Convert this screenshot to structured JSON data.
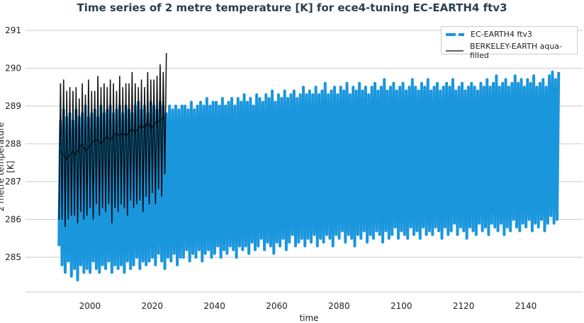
{
  "chart_data": {
    "type": "line",
    "title": "Time series of 2 metre temperature [K] for ece4-tuning EC-EARTH4 ftv3",
    "xlabel": "time",
    "ylabel": "2 metre temperature [K]",
    "xlim": [
      1990,
      2150
    ],
    "ylim": [
      284.2,
      291.2
    ],
    "xticks": [
      2000,
      2020,
      2040,
      2060,
      2080,
      2100,
      2120,
      2140
    ],
    "yticks": [
      285,
      286,
      287,
      288,
      289,
      290,
      291
    ],
    "grid": true,
    "legend_position": "top-right",
    "series": [
      {
        "name": "EC-EARTH4 ftv3",
        "color": "#1a96dd",
        "style": "dashed-thick",
        "start_year": 1990,
        "annual_max": [
          288.6,
          288.9,
          288.7,
          288.8,
          288.6,
          288.9,
          288.7,
          288.8,
          289.0,
          288.7,
          288.8,
          288.9,
          288.7,
          289.0,
          288.8,
          288.9,
          289.0,
          288.8,
          288.9,
          289.0,
          288.8,
          289.0,
          288.9,
          288.8,
          289.0,
          289.1,
          288.9,
          289.0,
          288.8,
          289.1,
          289.0,
          288.9,
          289.1,
          289.0,
          288.8,
          289.0,
          288.9,
          289.0,
          288.9,
          289.0,
          289.0,
          288.9,
          289.1,
          288.9,
          289.0,
          289.1,
          289.0,
          289.2,
          289.0,
          289.1,
          289.1,
          289.0,
          289.2,
          289.0,
          289.1,
          289.2,
          289.0,
          289.2,
          289.1,
          289.3,
          289.1,
          289.2,
          289.0,
          289.3,
          289.2,
          289.1,
          289.3,
          289.2,
          289.4,
          289.1,
          289.3,
          289.2,
          289.4,
          289.2,
          289.3,
          289.4,
          289.2,
          289.3,
          289.5,
          289.3,
          289.4,
          289.3,
          289.5,
          289.3,
          289.4,
          289.6,
          289.3,
          289.4,
          289.5,
          289.3,
          289.5,
          289.4,
          289.6,
          289.3,
          289.5,
          289.4,
          289.6,
          289.4,
          289.5,
          289.3,
          289.5,
          289.6,
          289.4,
          289.5,
          289.7,
          289.4,
          289.5,
          289.6,
          289.4,
          289.5,
          289.6,
          289.4,
          289.5,
          289.7,
          289.5,
          289.4,
          289.6,
          289.5,
          289.7,
          289.4,
          289.5,
          289.6,
          289.4,
          289.5,
          289.6,
          289.5,
          289.7,
          289.4,
          289.5,
          289.6,
          289.4,
          289.5,
          289.6,
          289.5,
          289.4,
          289.6,
          289.5,
          289.7,
          289.5,
          289.6,
          289.8,
          289.5,
          289.6,
          289.7,
          289.5,
          289.6,
          289.8,
          289.6,
          289.7,
          289.5,
          289.7,
          289.6,
          289.8,
          289.5,
          289.6,
          289.7,
          289.5,
          289.8,
          289.9,
          289.7,
          289.9
        ],
        "annual_min": [
          285.3,
          284.8,
          284.6,
          284.9,
          284.5,
          284.7,
          284.4,
          284.8,
          284.6,
          284.7,
          284.6,
          284.9,
          284.7,
          284.6,
          284.8,
          284.7,
          284.9,
          284.6,
          284.8,
          284.7,
          284.8,
          284.6,
          284.9,
          284.7,
          284.8,
          285.0,
          284.7,
          284.9,
          284.8,
          284.9,
          285.0,
          284.8,
          285.1,
          284.9,
          284.7,
          285.0,
          284.9,
          285.1,
          284.8,
          285.0,
          285.0,
          285.2,
          284.9,
          285.1,
          285.0,
          285.2,
          284.9,
          285.1,
          285.2,
          285.0,
          285.1,
          285.3,
          285.0,
          285.2,
          285.1,
          285.3,
          285.2,
          285.0,
          285.3,
          285.2,
          285.3,
          285.1,
          285.4,
          285.2,
          285.3,
          285.5,
          285.2,
          285.4,
          285.3,
          285.1,
          285.4,
          285.3,
          285.5,
          285.2,
          285.4,
          285.6,
          285.3,
          285.4,
          285.5,
          285.3,
          285.5,
          285.4,
          285.6,
          285.3,
          285.5,
          285.4,
          285.6,
          285.5,
          285.3,
          285.6,
          285.5,
          285.7,
          285.4,
          285.6,
          285.5,
          285.3,
          285.6,
          285.5,
          285.7,
          285.4,
          285.6,
          285.5,
          285.7,
          285.6,
          285.4,
          285.7,
          285.5,
          285.6,
          285.8,
          285.5,
          285.7,
          285.6,
          285.5,
          285.8,
          285.6,
          285.7,
          285.5,
          285.8,
          285.6,
          285.7,
          285.6,
          285.8,
          285.7,
          285.5,
          285.8,
          285.6,
          285.7,
          285.9,
          285.6,
          285.8,
          285.7,
          285.5,
          285.8,
          285.7,
          285.6,
          285.9,
          285.7,
          285.8,
          285.6,
          285.9,
          285.8,
          285.7,
          285.9,
          285.6,
          285.8,
          285.7,
          286.0,
          285.8,
          285.7,
          285.9,
          285.8,
          286.0,
          285.7,
          285.9,
          285.8,
          286.0,
          285.7,
          285.9,
          286.1,
          285.9,
          286.0
        ]
      },
      {
        "name": "BERKELEY-EARTH aqua-filled",
        "color": "#000000",
        "style": "solid",
        "start_year": 1990,
        "annual_max": [
          289.6,
          289.7,
          289.4,
          289.5,
          289.4,
          289.5,
          289.2,
          289.6,
          289.3,
          289.7,
          289.4,
          289.4,
          289.8,
          289.5,
          289.6,
          289.5,
          289.7,
          289.6,
          289.4,
          289.8,
          289.5,
          289.6,
          289.6,
          289.9,
          289.6,
          289.5,
          289.7,
          289.5,
          289.9,
          289.7,
          289.7,
          289.8,
          290.1,
          289.9,
          290.4
        ],
        "annual_min": [
          286.0,
          286.0,
          285.8,
          286.0,
          286.1,
          286.1,
          285.9,
          286.2,
          286.0,
          286.1,
          286.3,
          286.0,
          286.4,
          286.1,
          286.3,
          286.2,
          286.4,
          285.9,
          286.3,
          286.2,
          286.4,
          286.3,
          286.1,
          286.5,
          286.3,
          286.4,
          286.5,
          286.2,
          286.6,
          286.4,
          286.7,
          286.4,
          286.8,
          286.6,
          287.2
        ],
        "running_mean": [
          287.8,
          287.7,
          287.6,
          287.7,
          287.8,
          287.7,
          287.9,
          288.0,
          287.8,
          287.9,
          288.0,
          288.1,
          288.1,
          288.0,
          288.1,
          288.2,
          288.1,
          288.2,
          288.3,
          288.2,
          288.3,
          288.2,
          288.3,
          288.4,
          288.3,
          288.4,
          288.5,
          288.4,
          288.6,
          288.4,
          288.5,
          288.6,
          288.6,
          288.7,
          288.7
        ]
      }
    ]
  }
}
